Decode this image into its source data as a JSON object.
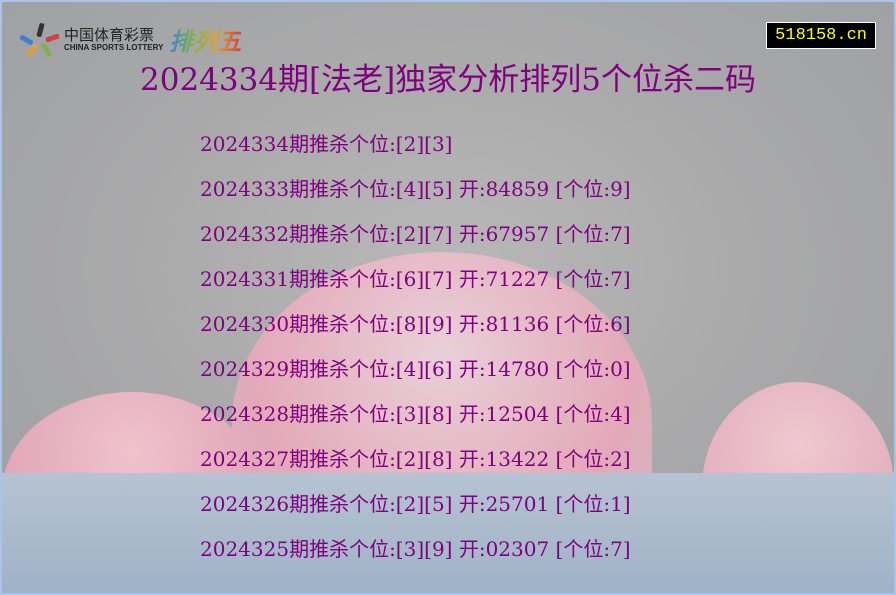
{
  "logo": {
    "cn": "中国体育彩票",
    "en": "CHINA SPORTS LOTTERY",
    "product": "排列五"
  },
  "site_badge": "518158.cn",
  "title": "2024334期[法老]独家分析排列5个位杀二码",
  "rows": [
    "2024334期推杀个位:[2][3]",
    "2024333期推杀个位:[4][5] 开:84859 [个位:9]",
    "2024332期推杀个位:[2][7] 开:67957 [个位:7]",
    "2024331期推杀个位:[6][7] 开:71227 [个位:7]",
    "2024330期推杀个位:[8][9] 开:81136 [个位:6]",
    "2024329期推杀个位:[4][6] 开:14780 [个位:0]",
    "2024328期推杀个位:[3][8] 开:12504 [个位:4]",
    "2024327期推杀个位:[2][8] 开:13422 [个位:2]",
    "2024326期推杀个位:[2][5] 开:25701 [个位:1]",
    "2024325期推杀个位:[3][9] 开:02307 [个位:7]"
  ],
  "colors": {
    "text": "#800080",
    "badge_bg": "#000000",
    "badge_text": "#ffff00"
  }
}
